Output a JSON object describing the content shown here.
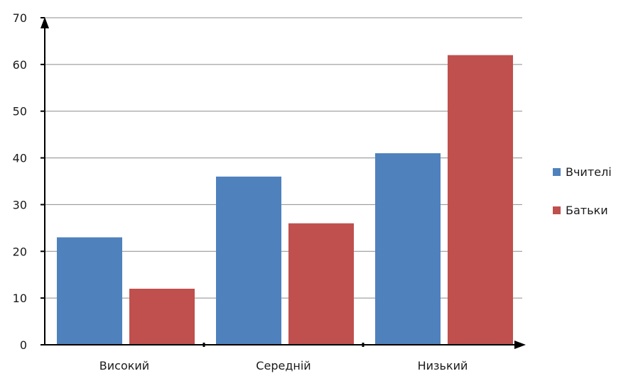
{
  "chart_data": {
    "type": "bar",
    "categories": [
      "Високий",
      "Середній",
      "Низький"
    ],
    "series": [
      {
        "name": "Вчителі",
        "values": [
          23,
          36,
          41
        ],
        "color": "#4f81bd"
      },
      {
        "name": "Батьки",
        "values": [
          12,
          26,
          62
        ],
        "color": "#c0504d"
      }
    ],
    "title": "",
    "xlabel": "",
    "ylabel": "",
    "ylim": [
      0,
      70
    ],
    "yticks": [
      0,
      10,
      20,
      30,
      40,
      50,
      60,
      70
    ],
    "grid": true,
    "legend_position": "right"
  }
}
